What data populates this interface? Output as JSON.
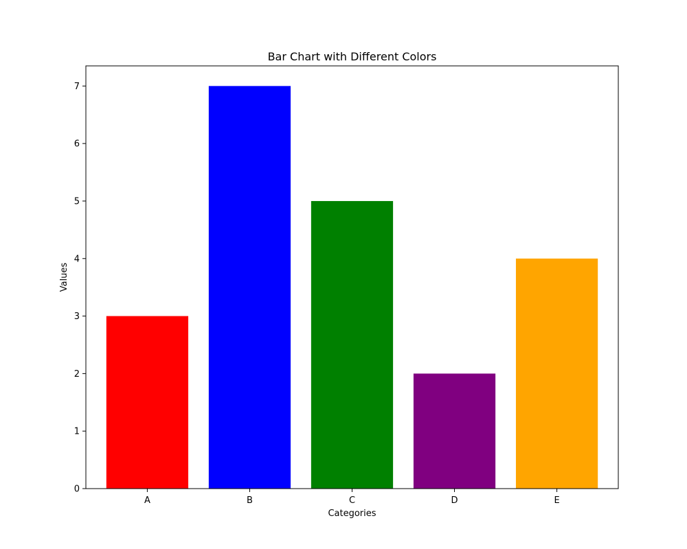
{
  "chart_data": {
    "type": "bar",
    "title": "Bar Chart with Different Colors",
    "xlabel": "Categories",
    "ylabel": "Values",
    "categories": [
      "A",
      "B",
      "C",
      "D",
      "E"
    ],
    "values": [
      3,
      7,
      5,
      2,
      4
    ],
    "colors": [
      "#ff0000",
      "#0000ff",
      "#008000",
      "#800080",
      "#ffa500"
    ],
    "ylim": [
      0,
      7.35
    ],
    "yticks": [
      "0",
      "1",
      "2",
      "3",
      "4",
      "5",
      "6",
      "7"
    ],
    "grid": false
  }
}
